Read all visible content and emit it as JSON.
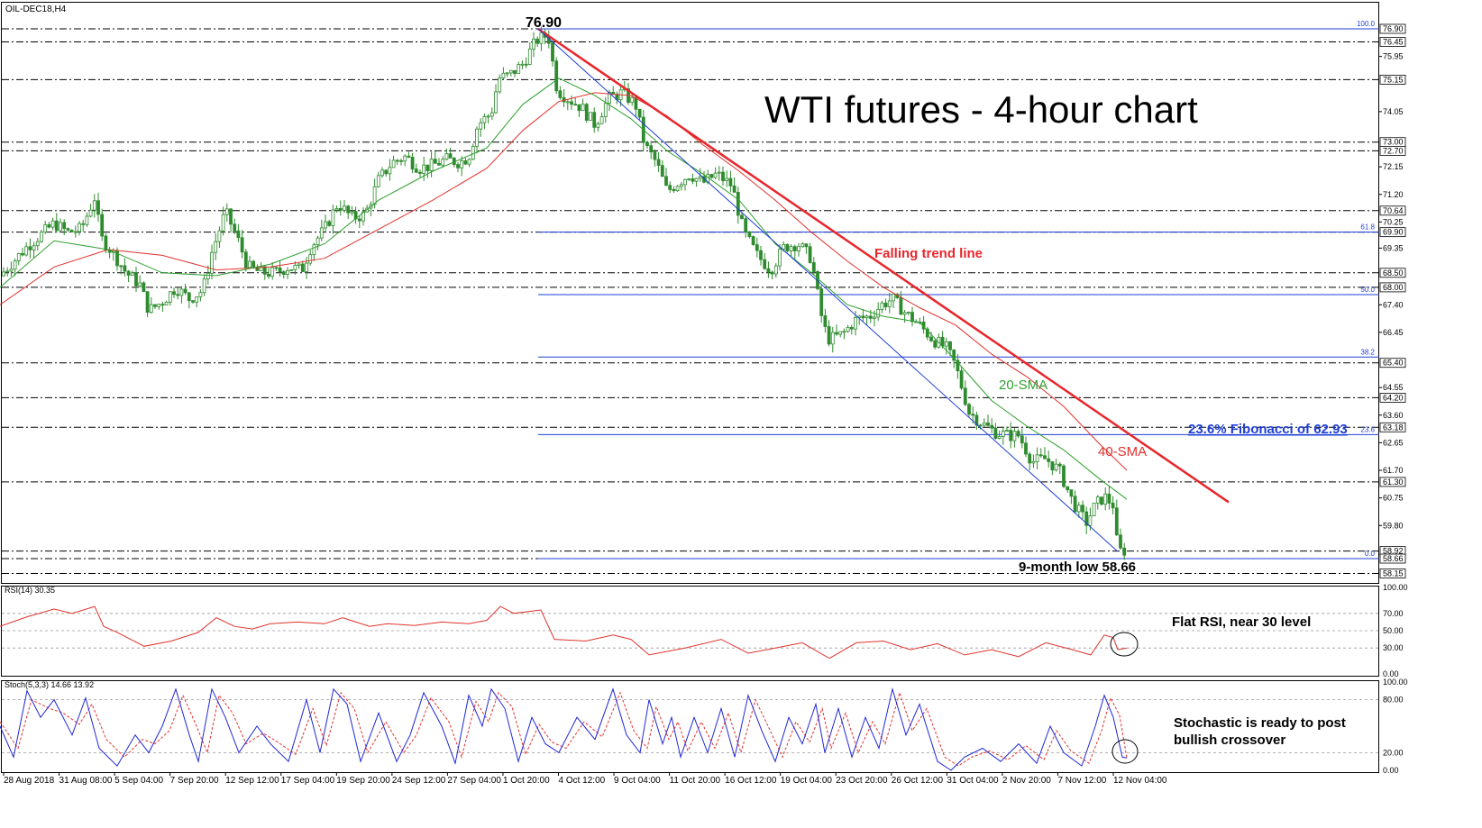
{
  "chart_data": {
    "type": "candlestick",
    "symbol": "OIL-DEC18,H4",
    "title": "WTI futures - 4-hour chart",
    "ylim": [
      57.8,
      77.3
    ],
    "price_levels": [
      76.9,
      76.45,
      75.15,
      73.0,
      72.7,
      70.64,
      69.9,
      68.5,
      68.0,
      65.4,
      64.2,
      63.18,
      61.3,
      58.92,
      58.66,
      58.15
    ],
    "y_ticks": [
      "75.95",
      "74.05",
      "72.15",
      "71.20",
      "70.25",
      "69.35",
      "67.40",
      "66.45",
      "64.55",
      "63.60",
      "62.65",
      "61.70",
      "60.75",
      "59.80"
    ],
    "x_ticks": [
      "28 Aug 2018",
      "31 Aug 08:00",
      "5 Sep 04:00",
      "7 Sep 20:00",
      "12 Sep 12:00",
      "17 Sep 04:00",
      "19 Sep 20:00",
      "24 Sep 12:00",
      "27 Sep 04:00",
      "1 Oct 20:00",
      "4 Oct 12:00",
      "9 Oct 04:00",
      "11 Oct 20:00",
      "16 Oct 12:00",
      "19 Oct 04:00",
      "23 Oct 20:00",
      "26 Oct 12:00",
      "31 Oct 04:00",
      "2 Nov 20:00",
      "7 Nov 12:00",
      "12 Nov 04:00"
    ],
    "price_path": [
      [
        0,
        68.4
      ],
      [
        15,
        68.9
      ],
      [
        30,
        69.4
      ],
      [
        45,
        69.8
      ],
      [
        60,
        70.2
      ],
      [
        75,
        69.9
      ],
      [
        90,
        70.0
      ],
      [
        105,
        71.1
      ],
      [
        112,
        69.7
      ],
      [
        125,
        69.2
      ],
      [
        140,
        68.5
      ],
      [
        155,
        68.1
      ],
      [
        165,
        67.2
      ],
      [
        180,
        67.5
      ],
      [
        195,
        68.0
      ],
      [
        210,
        67.6
      ],
      [
        225,
        67.9
      ],
      [
        235,
        69.2
      ],
      [
        250,
        70.6
      ],
      [
        262,
        69.8
      ],
      [
        275,
        68.7
      ],
      [
        290,
        68.5
      ],
      [
        305,
        68.5
      ],
      [
        320,
        68.7
      ],
      [
        335,
        68.6
      ],
      [
        345,
        69.4
      ],
      [
        360,
        70.0
      ],
      [
        375,
        70.9
      ],
      [
        390,
        70.4
      ],
      [
        405,
        70.5
      ],
      [
        420,
        71.7
      ],
      [
        435,
        72.3
      ],
      [
        450,
        72.5
      ],
      [
        465,
        72.1
      ],
      [
        480,
        72.2
      ],
      [
        495,
        72.4
      ],
      [
        510,
        72.3
      ],
      [
        520,
        72.5
      ],
      [
        530,
        73.6
      ],
      [
        545,
        74.0
      ],
      [
        553,
        75.2
      ],
      [
        565,
        75.3
      ],
      [
        580,
        75.7
      ],
      [
        595,
        76.5
      ],
      [
        608,
        76.7
      ],
      [
        618,
        74.8
      ],
      [
        630,
        74.5
      ],
      [
        645,
        74.2
      ],
      [
        660,
        73.6
      ],
      [
        675,
        74.5
      ],
      [
        690,
        74.7
      ],
      [
        705,
        74.3
      ],
      [
        715,
        72.9
      ],
      [
        728,
        72.3
      ],
      [
        740,
        71.3
      ],
      [
        752,
        71.6
      ],
      [
        765,
        71.9
      ],
      [
        780,
        71.6
      ],
      [
        795,
        71.9
      ],
      [
        812,
        71.5
      ],
      [
        825,
        69.9
      ],
      [
        840,
        69.1
      ],
      [
        855,
        68.6
      ],
      [
        870,
        69.4
      ],
      [
        885,
        69.5
      ],
      [
        900,
        69.0
      ],
      [
        913,
        66.7
      ],
      [
        920,
        66.2
      ],
      [
        935,
        66.4
      ],
      [
        950,
        66.9
      ],
      [
        965,
        67.0
      ],
      [
        978,
        67.4
      ],
      [
        990,
        67.6
      ],
      [
        1005,
        67.1
      ],
      [
        1020,
        66.7
      ],
      [
        1035,
        66.2
      ],
      [
        1050,
        65.9
      ],
      [
        1060,
        65.3
      ],
      [
        1075,
        63.7
      ],
      [
        1090,
        63.3
      ],
      [
        1105,
        63.0
      ],
      [
        1118,
        62.9
      ],
      [
        1130,
        62.9
      ],
      [
        1145,
        62.0
      ],
      [
        1160,
        62.1
      ],
      [
        1175,
        61.7
      ],
      [
        1190,
        60.6
      ],
      [
        1205,
        59.9
      ],
      [
        1215,
        60.5
      ],
      [
        1225,
        60.8
      ],
      [
        1235,
        60.5
      ],
      [
        1240,
        58.9
      ],
      [
        1250,
        58.95
      ]
    ],
    "sma20_path": [
      [
        0,
        68.0
      ],
      [
        60,
        69.6
      ],
      [
        120,
        69.3
      ],
      [
        180,
        68.5
      ],
      [
        240,
        68.4
      ],
      [
        300,
        68.8
      ],
      [
        360,
        69.5
      ],
      [
        420,
        71.0
      ],
      [
        480,
        72.0
      ],
      [
        540,
        72.8
      ],
      [
        580,
        74.3
      ],
      [
        620,
        75.2
      ],
      [
        660,
        74.6
      ],
      [
        700,
        73.8
      ],
      [
        740,
        72.7
      ],
      [
        780,
        71.9
      ],
      [
        820,
        71.0
      ],
      [
        860,
        69.5
      ],
      [
        900,
        68.5
      ],
      [
        940,
        67.4
      ],
      [
        980,
        67.0
      ],
      [
        1020,
        66.8
      ],
      [
        1060,
        65.5
      ],
      [
        1100,
        64.1
      ],
      [
        1140,
        63.2
      ],
      [
        1180,
        62.4
      ],
      [
        1220,
        61.4
      ],
      [
        1250,
        60.7
      ]
    ],
    "sma40_path": [
      [
        0,
        67.4
      ],
      [
        60,
        68.7
      ],
      [
        120,
        69.3
      ],
      [
        180,
        69.1
      ],
      [
        240,
        68.6
      ],
      [
        300,
        68.7
      ],
      [
        360,
        69.0
      ],
      [
        420,
        70.0
      ],
      [
        480,
        71.0
      ],
      [
        540,
        72.1
      ],
      [
        580,
        73.4
      ],
      [
        620,
        74.4
      ],
      [
        660,
        74.7
      ],
      [
        700,
        74.6
      ],
      [
        740,
        73.9
      ],
      [
        780,
        72.9
      ],
      [
        820,
        72.0
      ],
      [
        860,
        71.0
      ],
      [
        900,
        69.9
      ],
      [
        940,
        68.9
      ],
      [
        980,
        68.0
      ],
      [
        1020,
        67.3
      ],
      [
        1060,
        66.7
      ],
      [
        1100,
        65.7
      ],
      [
        1140,
        64.9
      ],
      [
        1180,
        63.9
      ],
      [
        1220,
        62.6
      ],
      [
        1250,
        61.7
      ]
    ],
    "falling_trend_line": [
      [
        597,
        76.9
      ],
      [
        1363,
        60.6
      ]
    ],
    "lower_channel_line": [
      [
        597,
        76.9
      ],
      [
        1240,
        58.9
      ]
    ],
    "fib_lines": [
      {
        "label": "100.0",
        "value": 76.9
      },
      {
        "label": "61.8",
        "value": 69.9
      },
      {
        "label": "50.0",
        "value": 67.75
      },
      {
        "label": "38.2",
        "value": 65.6
      },
      {
        "label": "23.6",
        "value": 62.93
      },
      {
        "label": "0.0",
        "value": 58.66
      }
    ],
    "rsi": {
      "label": "RSI(14) 30.35",
      "ylim": [
        0,
        100
      ],
      "ticks": [
        "100.00",
        "70.00",
        "50.00",
        "30.00",
        "0.00"
      ],
      "path": [
        [
          0,
          55
        ],
        [
          30,
          66
        ],
        [
          60,
          75
        ],
        [
          80,
          70
        ],
        [
          105,
          78
        ],
        [
          115,
          55
        ],
        [
          130,
          48
        ],
        [
          160,
          32
        ],
        [
          190,
          38
        ],
        [
          220,
          48
        ],
        [
          240,
          65
        ],
        [
          260,
          55
        ],
        [
          280,
          52
        ],
        [
          300,
          58
        ],
        [
          330,
          60
        ],
        [
          360,
          58
        ],
        [
          380,
          65
        ],
        [
          410,
          55
        ],
        [
          430,
          58
        ],
        [
          460,
          56
        ],
        [
          490,
          60
        ],
        [
          520,
          58
        ],
        [
          540,
          62
        ],
        [
          555,
          78
        ],
        [
          570,
          70
        ],
        [
          600,
          74
        ],
        [
          615,
          40
        ],
        [
          650,
          38
        ],
        [
          680,
          45
        ],
        [
          700,
          40
        ],
        [
          720,
          22
        ],
        [
          760,
          30
        ],
        [
          800,
          40
        ],
        [
          830,
          24
        ],
        [
          860,
          30
        ],
        [
          890,
          36
        ],
        [
          920,
          18
        ],
        [
          950,
          36
        ],
        [
          980,
          38
        ],
        [
          1010,
          28
        ],
        [
          1040,
          35
        ],
        [
          1070,
          22
        ],
        [
          1100,
          28
        ],
        [
          1130,
          20
        ],
        [
          1160,
          36
        ],
        [
          1190,
          28
        ],
        [
          1210,
          22
        ],
        [
          1225,
          45
        ],
        [
          1235,
          42
        ],
        [
          1240,
          28
        ],
        [
          1250,
          30
        ]
      ]
    },
    "stochastic": {
      "label": "Stoch(5,3,3) 14.66 13.92",
      "ylim": [
        0,
        100
      ],
      "ticks": [
        "100.00",
        "80.00",
        "20.00",
        "0.00"
      ],
      "k_path": [
        [
          0,
          50
        ],
        [
          15,
          15
        ],
        [
          30,
          90
        ],
        [
          45,
          60
        ],
        [
          60,
          80
        ],
        [
          80,
          40
        ],
        [
          95,
          82
        ],
        [
          110,
          25
        ],
        [
          130,
          5
        ],
        [
          150,
          40
        ],
        [
          165,
          20
        ],
        [
          180,
          50
        ],
        [
          195,
          92
        ],
        [
          210,
          40
        ],
        [
          220,
          10
        ],
        [
          235,
          92
        ],
        [
          250,
          60
        ],
        [
          265,
          20
        ],
        [
          285,
          50
        ],
        [
          300,
          30
        ],
        [
          320,
          10
        ],
        [
          340,
          80
        ],
        [
          355,
          20
        ],
        [
          370,
          92
        ],
        [
          385,
          75
        ],
        [
          400,
          10
        ],
        [
          420,
          65
        ],
        [
          440,
          10
        ],
        [
          455,
          40
        ],
        [
          470,
          88
        ],
        [
          490,
          50
        ],
        [
          505,
          8
        ],
        [
          520,
          85
        ],
        [
          535,
          50
        ],
        [
          545,
          92
        ],
        [
          560,
          70
        ],
        [
          575,
          10
        ],
        [
          590,
          60
        ],
        [
          605,
          30
        ],
        [
          620,
          20
        ],
        [
          640,
          60
        ],
        [
          660,
          35
        ],
        [
          680,
          92
        ],
        [
          695,
          40
        ],
        [
          710,
          20
        ],
        [
          720,
          80
        ],
        [
          735,
          30
        ],
        [
          745,
          60
        ],
        [
          755,
          15
        ],
        [
          770,
          60
        ],
        [
          785,
          20
        ],
        [
          800,
          70
        ],
        [
          815,
          15
        ],
        [
          830,
          85
        ],
        [
          845,
          45
        ],
        [
          860,
          10
        ],
        [
          875,
          60
        ],
        [
          890,
          30
        ],
        [
          905,
          75
        ],
        [
          915,
          20
        ],
        [
          930,
          70
        ],
        [
          945,
          15
        ],
        [
          960,
          60
        ],
        [
          975,
          25
        ],
        [
          990,
          92
        ],
        [
          1005,
          40
        ],
        [
          1020,
          75
        ],
        [
          1040,
          10
        ],
        [
          1055,
          0
        ],
        [
          1070,
          15
        ],
        [
          1090,
          25
        ],
        [
          1110,
          10
        ],
        [
          1130,
          30
        ],
        [
          1150,
          8
        ],
        [
          1165,
          50
        ],
        [
          1180,
          20
        ],
        [
          1200,
          5
        ],
        [
          1215,
          50
        ],
        [
          1225,
          85
        ],
        [
          1235,
          60
        ],
        [
          1245,
          15
        ],
        [
          1250,
          14
        ]
      ],
      "d_path": [
        [
          0,
          55
        ],
        [
          20,
          25
        ],
        [
          35,
          80
        ],
        [
          55,
          70
        ],
        [
          70,
          65
        ],
        [
          88,
          52
        ],
        [
          102,
          75
        ],
        [
          118,
          35
        ],
        [
          138,
          15
        ],
        [
          158,
          35
        ],
        [
          172,
          30
        ],
        [
          188,
          45
        ],
        [
          203,
          85
        ],
        [
          218,
          50
        ],
        [
          230,
          20
        ],
        [
          243,
          85
        ],
        [
          258,
          65
        ],
        [
          273,
          30
        ],
        [
          292,
          42
        ],
        [
          308,
          32
        ],
        [
          328,
          18
        ],
        [
          347,
          70
        ],
        [
          362,
          28
        ],
        [
          378,
          88
        ],
        [
          393,
          70
        ],
        [
          408,
          20
        ],
        [
          428,
          55
        ],
        [
          448,
          20
        ],
        [
          462,
          40
        ],
        [
          478,
          82
        ],
        [
          498,
          55
        ],
        [
          512,
          15
        ],
        [
          528,
          78
        ],
        [
          542,
          55
        ],
        [
          553,
          88
        ],
        [
          568,
          72
        ],
        [
          583,
          18
        ],
        [
          598,
          52
        ],
        [
          612,
          32
        ],
        [
          628,
          25
        ],
        [
          648,
          55
        ],
        [
          668,
          38
        ],
        [
          688,
          88
        ],
        [
          703,
          45
        ],
        [
          718,
          25
        ],
        [
          728,
          72
        ],
        [
          742,
          35
        ],
        [
          752,
          55
        ],
        [
          763,
          22
        ],
        [
          778,
          55
        ],
        [
          793,
          25
        ],
        [
          808,
          65
        ],
        [
          822,
          20
        ],
        [
          838,
          80
        ],
        [
          853,
          48
        ],
        [
          868,
          15
        ],
        [
          883,
          55
        ],
        [
          898,
          32
        ],
        [
          912,
          70
        ],
        [
          922,
          25
        ],
        [
          938,
          65
        ],
        [
          952,
          20
        ],
        [
          968,
          55
        ],
        [
          982,
          30
        ],
        [
          998,
          88
        ],
        [
          1012,
          45
        ],
        [
          1028,
          70
        ],
        [
          1048,
          15
        ],
        [
          1063,
          5
        ],
        [
          1078,
          15
        ],
        [
          1098,
          22
        ],
        [
          1118,
          12
        ],
        [
          1138,
          28
        ],
        [
          1158,
          12
        ],
        [
          1172,
          45
        ],
        [
          1188,
          22
        ],
        [
          1208,
          8
        ],
        [
          1222,
          45
        ],
        [
          1232,
          82
        ],
        [
          1242,
          62
        ],
        [
          1250,
          14
        ]
      ]
    }
  },
  "annotations": {
    "peak_label": "76.90",
    "falling_trend_line": "Falling trend line",
    "sma20": "20-SMA",
    "sma40": "40-SMA",
    "fibonacci": "23.6% Fibonacci of 62.93",
    "low_label": "9-month low 58.66",
    "rsi_note": "Flat RSI, near 30 level",
    "stoch_note_line1": "Stochastic is ready to post",
    "stoch_note_line2": "bullish crossover"
  },
  "colors": {
    "candle": "#2e8b2e",
    "sma20": "#2ca02c",
    "sma40": "#e0332e",
    "trend": "#e8262b",
    "channel": "#1f3fd6",
    "fib": "#1f3fd6",
    "rsi": "#e0332e",
    "stoch_k": "#2026d6",
    "stoch_d": "#e0332e",
    "level": "#000000",
    "note_text": "#000000"
  }
}
